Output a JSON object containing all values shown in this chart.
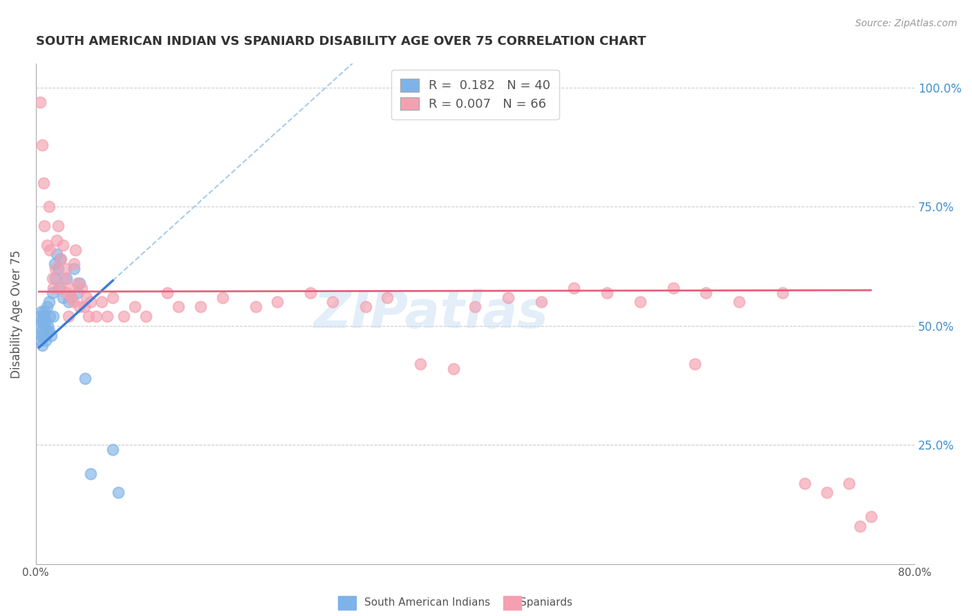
{
  "title": "SOUTH AMERICAN INDIAN VS SPANIARD DISABILITY AGE OVER 75 CORRELATION CHART",
  "source": "Source: ZipAtlas.com",
  "ylabel": "Disability Age Over 75",
  "xlim": [
    0.0,
    0.8
  ],
  "ylim": [
    0.0,
    1.05
  ],
  "ytick_positions": [
    0.0,
    0.25,
    0.5,
    0.75,
    1.0
  ],
  "ytick_labels": [
    "",
    "25.0%",
    "50.0%",
    "75.0%",
    "100.0%"
  ],
  "blue_R": "0.182",
  "blue_N": "40",
  "pink_R": "0.007",
  "pink_N": "66",
  "blue_color": "#7EB3E8",
  "pink_color": "#F4A0B0",
  "blue_line_color": "#3B7DD8",
  "pink_line_color": "#E8607A",
  "dashed_line_color": "#A8CCEA",
  "watermark": "ZIPatlas",
  "blue_x": [
    0.003,
    0.004,
    0.004,
    0.005,
    0.005,
    0.005,
    0.006,
    0.006,
    0.007,
    0.007,
    0.008,
    0.008,
    0.009,
    0.009,
    0.01,
    0.01,
    0.011,
    0.012,
    0.012,
    0.013,
    0.014,
    0.015,
    0.016,
    0.017,
    0.018,
    0.019,
    0.02,
    0.021,
    0.022,
    0.025,
    0.028,
    0.03,
    0.032,
    0.035,
    0.038,
    0.04,
    0.045,
    0.05,
    0.07,
    0.075
  ],
  "blue_y": [
    0.5,
    0.47,
    0.52,
    0.48,
    0.51,
    0.53,
    0.46,
    0.49,
    0.48,
    0.52,
    0.5,
    0.53,
    0.47,
    0.51,
    0.49,
    0.54,
    0.5,
    0.55,
    0.49,
    0.52,
    0.48,
    0.57,
    0.52,
    0.63,
    0.6,
    0.65,
    0.62,
    0.58,
    0.64,
    0.56,
    0.6,
    0.55,
    0.56,
    0.62,
    0.57,
    0.59,
    0.39,
    0.19,
    0.24,
    0.15
  ],
  "pink_x": [
    0.004,
    0.006,
    0.007,
    0.008,
    0.01,
    0.012,
    0.013,
    0.015,
    0.016,
    0.018,
    0.019,
    0.02,
    0.022,
    0.023,
    0.025,
    0.026,
    0.027,
    0.028,
    0.03,
    0.031,
    0.032,
    0.034,
    0.035,
    0.036,
    0.038,
    0.04,
    0.042,
    0.044,
    0.046,
    0.048,
    0.05,
    0.055,
    0.06,
    0.065,
    0.07,
    0.08,
    0.09,
    0.1,
    0.12,
    0.13,
    0.15,
    0.17,
    0.2,
    0.22,
    0.25,
    0.27,
    0.3,
    0.32,
    0.35,
    0.38,
    0.4,
    0.43,
    0.46,
    0.49,
    0.52,
    0.55,
    0.58,
    0.61,
    0.64,
    0.68,
    0.7,
    0.72,
    0.74,
    0.76,
    0.6,
    0.75
  ],
  "pink_y": [
    0.97,
    0.88,
    0.8,
    0.71,
    0.67,
    0.75,
    0.66,
    0.6,
    0.58,
    0.62,
    0.68,
    0.71,
    0.58,
    0.64,
    0.67,
    0.6,
    0.62,
    0.57,
    0.52,
    0.58,
    0.56,
    0.55,
    0.63,
    0.66,
    0.59,
    0.54,
    0.58,
    0.54,
    0.56,
    0.52,
    0.55,
    0.52,
    0.55,
    0.52,
    0.56,
    0.52,
    0.54,
    0.52,
    0.57,
    0.54,
    0.54,
    0.56,
    0.54,
    0.55,
    0.57,
    0.55,
    0.54,
    0.56,
    0.42,
    0.41,
    0.54,
    0.56,
    0.55,
    0.58,
    0.57,
    0.55,
    0.58,
    0.57,
    0.55,
    0.57,
    0.17,
    0.15,
    0.17,
    0.1,
    0.42,
    0.08
  ]
}
